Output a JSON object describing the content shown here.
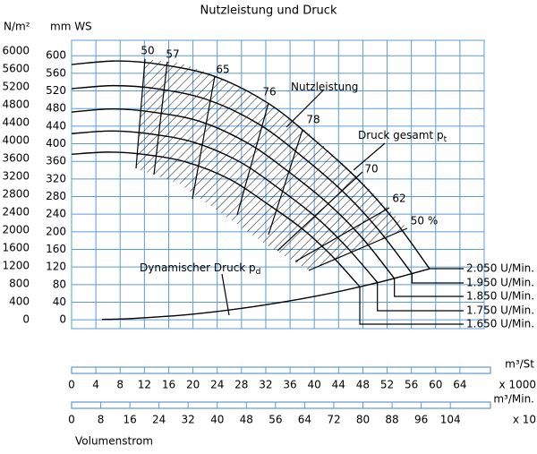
{
  "chart_data": {
    "type": "line",
    "title": "Nutzleistung und Druck",
    "y_label": "mm WS",
    "y2_label": "N/m²",
    "x_label": "m³/St",
    "x_multiplier": "x 1000",
    "x2_label": "m³/Min.",
    "x2_multiplier": "x 10",
    "x_title": "Volumenstrom",
    "xlim": [
      0,
      68
    ],
    "xticks": [
      0,
      4,
      8,
      12,
      16,
      20,
      24,
      28,
      32,
      36,
      40,
      44,
      48,
      52,
      56,
      60,
      64
    ],
    "x2lim": [
      0,
      113.3
    ],
    "x2ticks": [
      0,
      8,
      16,
      24,
      32,
      40,
      48,
      56,
      64,
      72,
      80,
      88,
      96,
      104
    ],
    "ylim": [
      -20,
      635
    ],
    "yticks": [
      0,
      40,
      80,
      120,
      160,
      200,
      240,
      280,
      320,
      360,
      400,
      440,
      480,
      520,
      560,
      600
    ],
    "y2lim": [
      -200,
      6240
    ],
    "y2ticks": [
      0,
      400,
      800,
      1200,
      1600,
      2000,
      2400,
      2800,
      3200,
      3600,
      4000,
      4400,
      4800,
      5200,
      5600,
      6000
    ],
    "grid": true,
    "grid_color": "#5b9bd5",
    "series": [
      {
        "name": "2.050 U/Min.",
        "color": "#000000",
        "x": [
          0,
          7.4,
          14.7,
          23.6,
          32.4,
          39.8,
          47.2,
          53.1,
          59
        ],
        "values": [
          580,
          588,
          580,
          553,
          492,
          411,
          319,
          228,
          116
        ]
      },
      {
        "name": "1.950 U/Min.",
        "color": "#000000",
        "x": [
          0,
          7.0,
          14.0,
          22.4,
          30.8,
          37.9,
          44.9,
          50.5,
          56.1
        ],
        "values": [
          525,
          532,
          525,
          500,
          445,
          372,
          289,
          206,
          105
        ]
      },
      {
        "name": "1.850 U/Min.",
        "color": "#000000",
        "x": [
          0,
          6.7,
          13.3,
          21.3,
          29.2,
          35.9,
          42.6,
          47.9,
          53.2
        ],
        "values": [
          472,
          479,
          472,
          450,
          400,
          335,
          260,
          186,
          94
        ]
      },
      {
        "name": "1.750 U/Min.",
        "color": "#000000",
        "x": [
          0,
          6.3,
          12.6,
          20.2,
          27.7,
          34.0,
          40.3,
          45.3,
          50.4
        ],
        "values": [
          423,
          429,
          423,
          403,
          359,
          300,
          233,
          166,
          85
        ]
      },
      {
        "name": "1.650 U/Min.",
        "color": "#000000",
        "x": [
          0,
          6.0,
          11.8,
          19.0,
          26.1,
          32.0,
          38.0,
          42.7,
          47.5
        ],
        "values": [
          376,
          381,
          376,
          358,
          319,
          266,
          207,
          148,
          75
        ]
      }
    ],
    "dynamic_pressure": {
      "name": "Dynamischer Druck p",
      "subscript": "d",
      "color": "#000000",
      "x": [
        5,
        10,
        20,
        30,
        40,
        50,
        59
      ],
      "values": [
        1,
        3,
        13,
        30,
        53,
        83,
        116
      ]
    },
    "annotations": [
      {
        "text": "Nutzleistung"
      },
      {
        "text": "Druck gesamt p",
        "subscript": "t"
      }
    ],
    "efficiency_labels": [
      "50",
      "57",
      "65",
      "76",
      "78",
      "70",
      "62",
      "50 %"
    ]
  }
}
